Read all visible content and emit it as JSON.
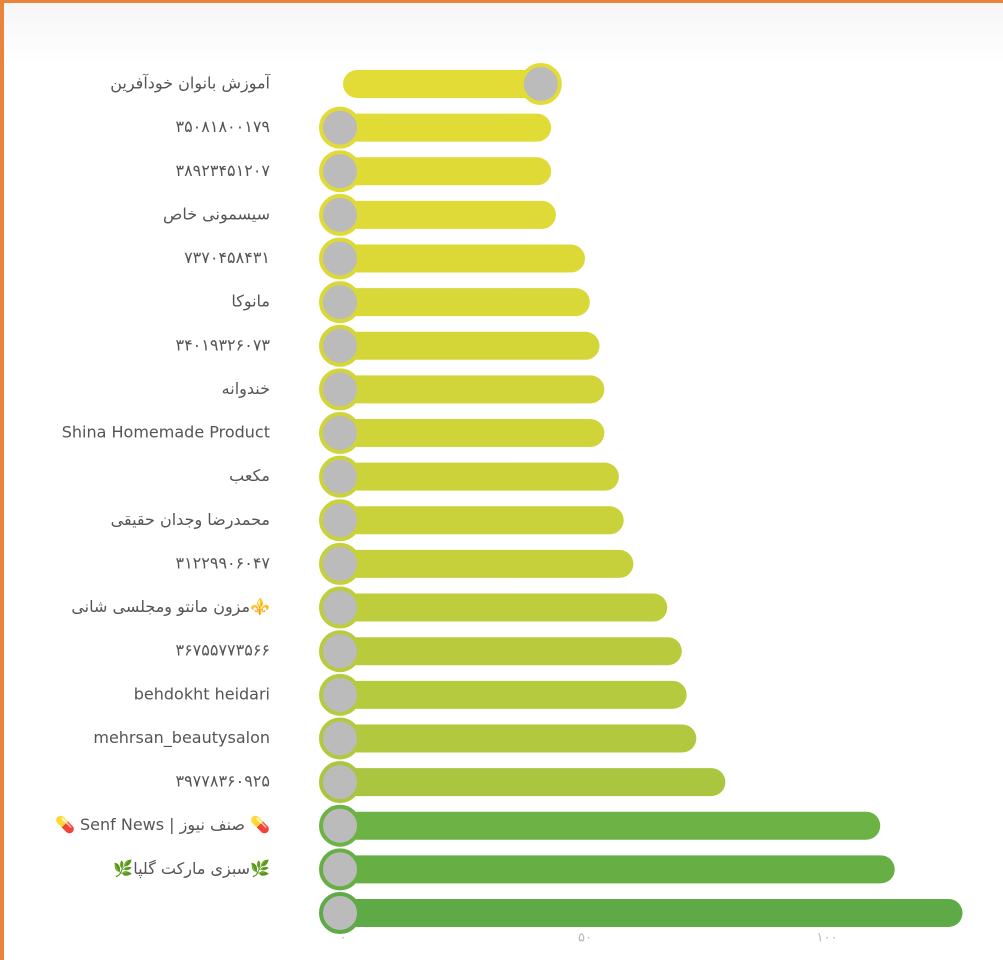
{
  "chart_data": {
    "type": "barh",
    "categories": [
      "آموزش بانوان خودآفرین",
      "۳۵۰۸۱۸۰۰۱۷۹",
      "۳۸۹۲۳۴۵۱۲۰۷",
      "سیسمونی خاص",
      "۷۳۷۰۴۵۸۴۳۱",
      "مانوکا",
      "۳۴۰۱۹۳۲۶۰۷۳",
      "خندوانه",
      "Shina Homemade Product",
      "مکعب",
      "محمدرضا وجدان حقیقی",
      "۳۱۲۲۹۹۰۶۰۴۷",
      "⚜️مزون مانتو ومجلسی شانی",
      "۳۶۷۵۵۷۷۳۵۶۶",
      "behdokht heidari",
      "mehrsan_beautysalon",
      "۳۹۷۷۸۳۶۰۹۲۵",
      "💊 صنف نیوز | Senf News 💊",
      "🌿سبزی مارکت گلپا🌿",
      null
    ],
    "values": [
      45,
      43,
      43,
      44,
      50,
      51,
      53,
      54,
      54,
      57,
      58,
      60,
      67,
      70,
      71,
      73,
      79,
      111,
      114,
      128
    ],
    "colors": [
      "#e3dc36",
      "#e1db36",
      "#e0da37",
      "#dfda37",
      "#dcd937",
      "#d8d838",
      "#d4d638",
      "#d1d539",
      "#cfd439",
      "#ccd33a",
      "#c9d23a",
      "#c5d03b",
      "#bdcd3c",
      "#b9cb3d",
      "#b6ca3d",
      "#b2c83e",
      "#aac53f",
      "#6db244",
      "#67af45",
      "#5eaa46"
    ],
    "xlim": [
      0,
      128
    ],
    "xticks": [
      {
        "value": 0,
        "label": "۰"
      },
      {
        "value": 50,
        "label": "۵۰"
      },
      {
        "value": 100,
        "label": "۱۰۰"
      }
    ]
  }
}
